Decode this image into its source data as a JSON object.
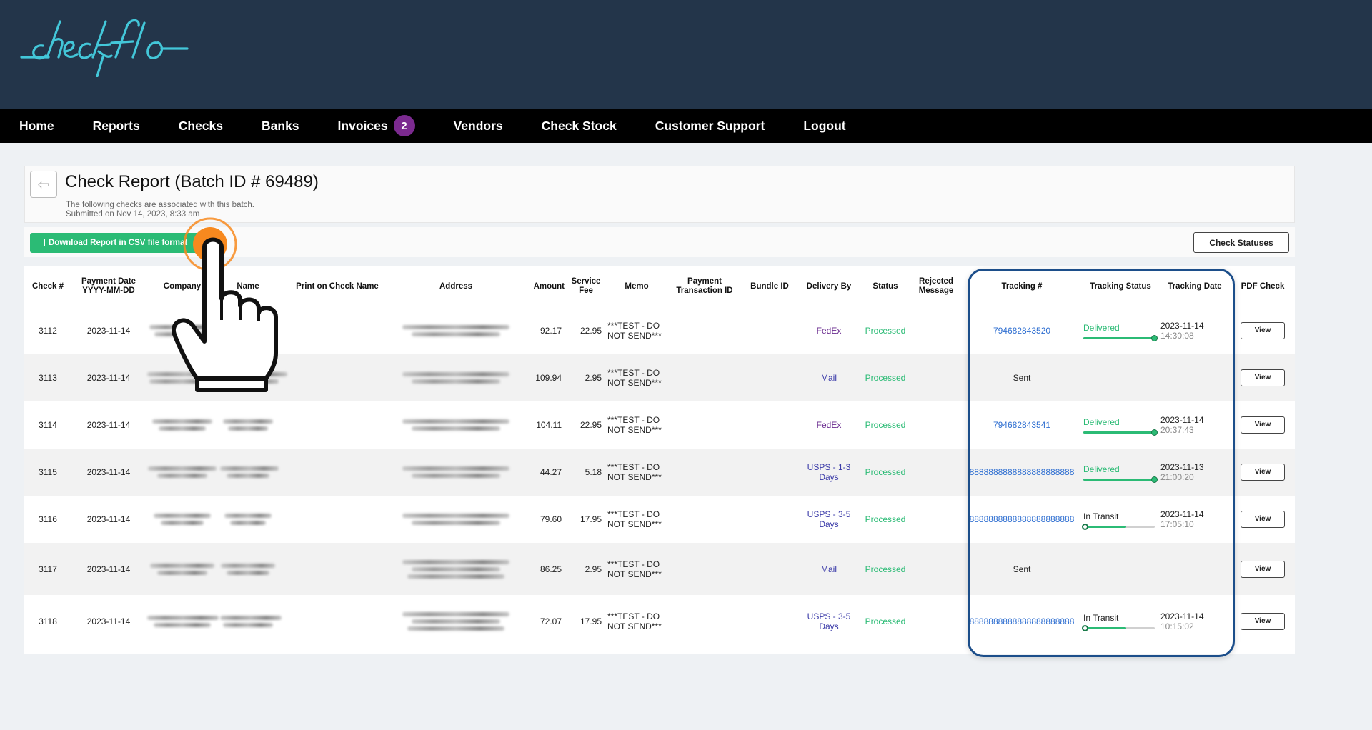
{
  "app": {
    "logo_text": "checkflo"
  },
  "nav": {
    "items": [
      {
        "label": "Home"
      },
      {
        "label": "Reports"
      },
      {
        "label": "Checks"
      },
      {
        "label": "Banks"
      },
      {
        "label": "Invoices",
        "badge": "2"
      },
      {
        "label": "Vendors"
      },
      {
        "label": "Check Stock"
      },
      {
        "label": "Customer Support"
      },
      {
        "label": "Logout"
      }
    ]
  },
  "report": {
    "back_icon": "arrow-left-icon",
    "title": "Check Report (Batch ID # 69489)",
    "subtitle_line1": "The following checks are associated with this batch.",
    "subtitle_line2": "Submitted on Nov 14, 2023, 8:33 am"
  },
  "toolbar": {
    "csv_label": "Download Report in CSV file format",
    "check_statuses_label": "Check Statuses"
  },
  "columns": {
    "check": "Check #",
    "payment_date": "Payment Date",
    "payment_date_fmt": "YYYY-MM-DD",
    "company": "Company",
    "name": "Name",
    "print_name": "Print on Check Name",
    "address": "Address",
    "amount": "Amount",
    "service": "Service",
    "fee": "Fee",
    "memo": "Memo",
    "payment": "Payment",
    "transaction": "Transaction ID",
    "bundle": "Bundle ID",
    "delivery": "Delivery By",
    "status": "Status",
    "rejected": "Rejected",
    "message": "Message",
    "tracking": "Tracking #",
    "tracking_status": "Tracking Status",
    "tracking_date": "Tracking Date",
    "pdf": "PDF Check"
  },
  "rows": [
    {
      "check": "3112",
      "date": "2023-11-14",
      "amount": "92.17",
      "fee": "22.95",
      "memo1": "***TEST - DO",
      "memo2": "NOT SEND***",
      "delivery1": "FedEx",
      "delivery2": "",
      "status": "Processed",
      "tracking": "794682843520",
      "tstatus": "Delivered",
      "progress": 1.0,
      "tdate": "2023-11-14",
      "ttime": "14:30:08",
      "view": "View"
    },
    {
      "check": "3113",
      "date": "2023-11-14",
      "amount": "109.94",
      "fee": "2.95",
      "memo1": "***TEST - DO",
      "memo2": "NOT SEND***",
      "delivery1": "Mail",
      "delivery2": "",
      "status": "Processed",
      "tracking": "Sent",
      "tstatus": "",
      "progress": null,
      "tdate": "",
      "ttime": "",
      "view": "View"
    },
    {
      "check": "3114",
      "date": "2023-11-14",
      "amount": "104.11",
      "fee": "22.95",
      "memo1": "***TEST - DO",
      "memo2": "NOT SEND***",
      "delivery1": "FedEx",
      "delivery2": "",
      "status": "Processed",
      "tracking": "794682843541",
      "tstatus": "Delivered",
      "progress": 1.0,
      "tdate": "2023-11-14",
      "ttime": "20:37:43",
      "view": "View"
    },
    {
      "check": "3115",
      "date": "2023-11-14",
      "amount": "44.27",
      "fee": "5.18",
      "memo1": "***TEST - DO",
      "memo2": "NOT SEND***",
      "delivery1": "USPS - 1-3",
      "delivery2": "Days",
      "status": "Processed",
      "tracking": "8888888888888888888888",
      "tstatus": "Delivered",
      "progress": 1.0,
      "tdate": "2023-11-13",
      "ttime": "21:00:20",
      "view": "View"
    },
    {
      "check": "3116",
      "date": "2023-11-14",
      "amount": "79.60",
      "fee": "17.95",
      "memo1": "***TEST - DO",
      "memo2": "NOT SEND***",
      "delivery1": "USPS - 3-5",
      "delivery2": "Days",
      "status": "Processed",
      "tracking": "8888888888888888888888",
      "tstatus": "In Transit",
      "progress": 0.6,
      "tdate": "2023-11-14",
      "ttime": "17:05:10",
      "view": "View"
    },
    {
      "check": "3117",
      "date": "2023-11-14",
      "amount": "86.25",
      "fee": "2.95",
      "memo1": "***TEST - DO",
      "memo2": "NOT SEND***",
      "delivery1": "Mail",
      "delivery2": "",
      "status": "Processed",
      "tracking": "Sent",
      "tstatus": "",
      "progress": null,
      "tdate": "",
      "ttime": "",
      "view": "View"
    },
    {
      "check": "3118",
      "date": "2023-11-14",
      "amount": "72.07",
      "fee": "17.95",
      "memo1": "***TEST - DO",
      "memo2": "NOT SEND***",
      "delivery1": "USPS - 3-5",
      "delivery2": "Days",
      "status": "Processed",
      "tracking": "8888888888888888888888",
      "tstatus": "In Transit",
      "progress": 0.6,
      "tdate": "2023-11-14",
      "ttime": "10:15:02",
      "view": "View"
    }
  ],
  "colors": {
    "header_bg": "#23354a",
    "accent_green": "#2bbb75",
    "link_blue": "#2f6fd1",
    "highlight": "#1c4e8a",
    "tap_orange": "#f7891f"
  }
}
